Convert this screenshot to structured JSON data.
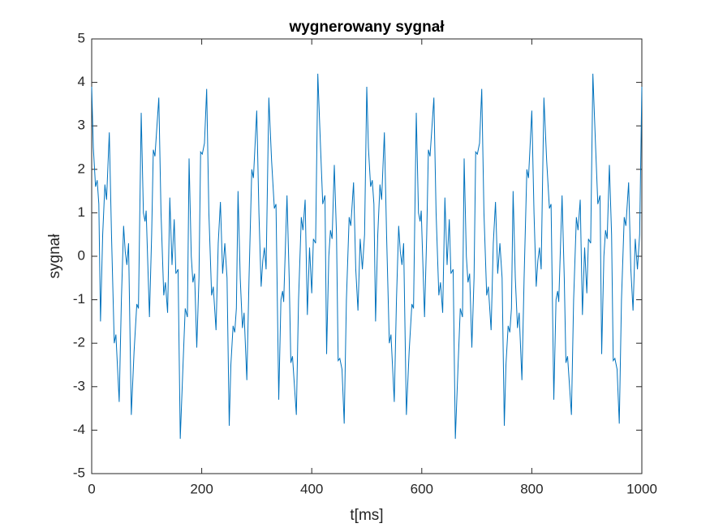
{
  "chart_data": {
    "type": "line",
    "title": "wygnerowany sygnał",
    "x_label": "t[ms]",
    "y_label": "sygnał",
    "xlim": [
      0,
      1000
    ],
    "ylim": [
      -5,
      5
    ],
    "xticks": [
      0,
      200,
      400,
      600,
      800,
      1000
    ],
    "yticks": [
      -5,
      -4,
      -3,
      -2,
      -1,
      0,
      1,
      2,
      3,
      4,
      5
    ],
    "series": [
      {
        "color": "#0072bd",
        "x": [
          0,
          3,
          7,
          10,
          13,
          16,
          20,
          24,
          27,
          32,
          36,
          41,
          44,
          50,
          54,
          58,
          61,
          64,
          67,
          72,
          77,
          82,
          85,
          90,
          94,
          97,
          99,
          105,
          109,
          112,
          115,
          122,
          126,
          131,
          134,
          138,
          142,
          146,
          150,
          153,
          157,
          161,
          166,
          170,
          174,
          177,
          181,
          184,
          187,
          191,
          195,
          198,
          201,
          205,
          209,
          213,
          218,
          221,
          226,
          230,
          234,
          238,
          242,
          246,
          250,
          253,
          257,
          260,
          263,
          266,
          270,
          274,
          277,
          282,
          286,
          291,
          294,
          300,
          304,
          308,
          311,
          314,
          317,
          322,
          327,
          332,
          335,
          340,
          344,
          347,
          349,
          355,
          359,
          362,
          365,
          372,
          376,
          381,
          384,
          388,
          392,
          396,
          400,
          403,
          407,
          411,
          416,
          420,
          424,
          427,
          431,
          434,
          437,
          441,
          445,
          448,
          451,
          455,
          459,
          463,
          468,
          471,
          476,
          480,
          484,
          488,
          492,
          496,
          500,
          503,
          507,
          510,
          513,
          516,
          520,
          524,
          527,
          532,
          536,
          541,
          544,
          550,
          554,
          558,
          561,
          564,
          567,
          572,
          577,
          582,
          585,
          590,
          594,
          597,
          599,
          605,
          609,
          612,
          615,
          622,
          626,
          631,
          634,
          638,
          642,
          646,
          650,
          653,
          657,
          661,
          666,
          670,
          674,
          677,
          681,
          684,
          687,
          691,
          695,
          698,
          701,
          705,
          709,
          713,
          718,
          721,
          726,
          730,
          734,
          738,
          742,
          746,
          750,
          753,
          757,
          760,
          763,
          766,
          770,
          774,
          777,
          782,
          786,
          791,
          794,
          800,
          804,
          808,
          811,
          814,
          817,
          822,
          827,
          832,
          835,
          840,
          844,
          847,
          849,
          855,
          859,
          862,
          865,
          872,
          876,
          881,
          884,
          888,
          892,
          896,
          900,
          903,
          907,
          911,
          916,
          920,
          924,
          927,
          931,
          934,
          937,
          941,
          945,
          948,
          951,
          955,
          959,
          963,
          968,
          971,
          976,
          980,
          984,
          988,
          992,
          996,
          1000
        ],
        "values": [
          3.9,
          2.5,
          1.6,
          1.75,
          1.2,
          -1.5,
          0.5,
          1.65,
          1.3,
          2.85,
          0.5,
          -2.0,
          -1.8,
          -3.35,
          -1.0,
          0.7,
          0.1,
          -0.2,
          0.3,
          -3.65,
          -2.2,
          -1.1,
          -1.2,
          3.3,
          1.0,
          0.8,
          1.05,
          -1.4,
          0.5,
          2.45,
          2.3,
          3.65,
          1.0,
          -0.9,
          -0.6,
          -1.3,
          1.35,
          -0.2,
          0.85,
          -0.4,
          -0.3,
          -4.2,
          -2.5,
          -1.2,
          -1.4,
          2.25,
          0,
          -0.6,
          -0.4,
          -2.1,
          -0.5,
          2.4,
          2.35,
          2.6,
          3.85,
          1.0,
          -0.9,
          -0.7,
          -1.7,
          0.3,
          1.25,
          -0.4,
          0.3,
          -0.5,
          -3.9,
          -2.5,
          -1.6,
          -1.75,
          -1.2,
          1.5,
          -0.5,
          -1.65,
          -1.3,
          -2.85,
          -0.5,
          2.0,
          1.8,
          3.35,
          1.0,
          -0.7,
          -0.1,
          0.2,
          -0.3,
          3.65,
          2.2,
          1.1,
          1.2,
          -3.3,
          -1.0,
          -0.8,
          -1.05,
          1.4,
          -0.5,
          -2.45,
          -2.3,
          -3.65,
          -1.0,
          0.9,
          0.6,
          1.3,
          -1.35,
          0.2,
          -0.85,
          0.4,
          0.3,
          4.2,
          2.5,
          1.2,
          1.4,
          -2.25,
          0,
          0.6,
          0.4,
          2.1,
          0.5,
          -2.4,
          -2.35,
          -2.6,
          -3.85,
          -1.0,
          0.9,
          0.7,
          1.7,
          -0.3,
          -1.25,
          0.4,
          -0.3,
          0.5,
          3.9,
          2.5,
          1.6,
          1.75,
          1.2,
          -1.5,
          0.5,
          1.65,
          1.3,
          2.85,
          0.5,
          -2.0,
          -1.8,
          -3.35,
          -1.0,
          0.7,
          0.1,
          -0.2,
          0.3,
          -3.65,
          -2.2,
          -1.1,
          -1.2,
          3.3,
          1.0,
          0.8,
          1.05,
          -1.4,
          0.5,
          2.45,
          2.3,
          3.65,
          1.0,
          -0.9,
          -0.6,
          -1.3,
          1.35,
          -0.2,
          0.85,
          -0.4,
          -0.3,
          -4.2,
          -2.5,
          -1.2,
          -1.4,
          2.25,
          0,
          -0.6,
          -0.4,
          -2.1,
          -0.5,
          2.4,
          2.35,
          2.6,
          3.85,
          1.0,
          -0.9,
          -0.7,
          -1.7,
          0.3,
          1.25,
          -0.4,
          0.3,
          -0.5,
          -3.9,
          -2.5,
          -1.6,
          -1.75,
          -1.2,
          1.5,
          -0.5,
          -1.65,
          -1.3,
          -2.85,
          -0.5,
          2.0,
          1.8,
          3.35,
          1.0,
          -0.7,
          -0.1,
          0.2,
          -0.3,
          3.65,
          2.2,
          1.1,
          1.2,
          -3.3,
          -1.0,
          -0.8,
          -1.05,
          1.4,
          -0.5,
          -2.45,
          -2.3,
          -3.65,
          -1.0,
          0.9,
          0.6,
          1.3,
          -1.35,
          0.2,
          -0.85,
          0.4,
          0.3,
          4.2,
          2.5,
          1.2,
          1.4,
          -2.25,
          0,
          0.6,
          0.4,
          2.1,
          0.5,
          -2.4,
          -2.35,
          -2.6,
          -3.85,
          -1.0,
          0.9,
          0.7,
          1.7,
          -0.3,
          -1.25,
          0.4,
          -0.3,
          0.5,
          3.9
        ]
      }
    ]
  }
}
